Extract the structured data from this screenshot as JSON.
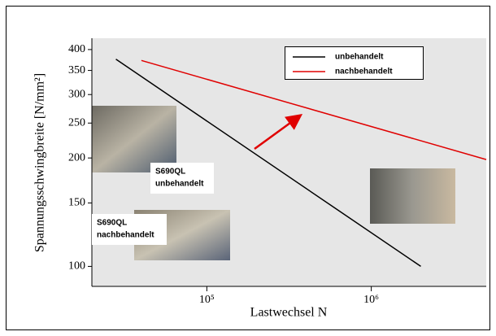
{
  "chart_data": {
    "type": "line",
    "x_label": "Lastwechsel N",
    "y_label": "Spannungsschwingbreite [N/mm²]",
    "xlog": true,
    "ylog": true,
    "xlim": [
      20000,
      5000000
    ],
    "ylim": [
      88,
      430
    ],
    "xticks": [
      {
        "value": 100000,
        "label": "10⁵"
      },
      {
        "value": 1000000,
        "label": "10⁶"
      }
    ],
    "yticks": [
      100,
      150,
      200,
      250,
      300,
      350,
      400
    ],
    "legend_position": "top-right",
    "series": [
      {
        "name": "unbehandelt",
        "color": "#000000",
        "x": [
          28000,
          2000000
        ],
        "values": [
          376,
          100
        ]
      },
      {
        "name": "nachbehandelt",
        "color": "#e00000",
        "x": [
          40000,
          5000000
        ],
        "values": [
          373,
          198
        ]
      }
    ],
    "annotations": [
      {
        "lines": [
          "S690QL",
          "unbehandelt"
        ]
      },
      {
        "lines": [
          "S690QL",
          "nachbehandelt"
        ]
      }
    ]
  }
}
